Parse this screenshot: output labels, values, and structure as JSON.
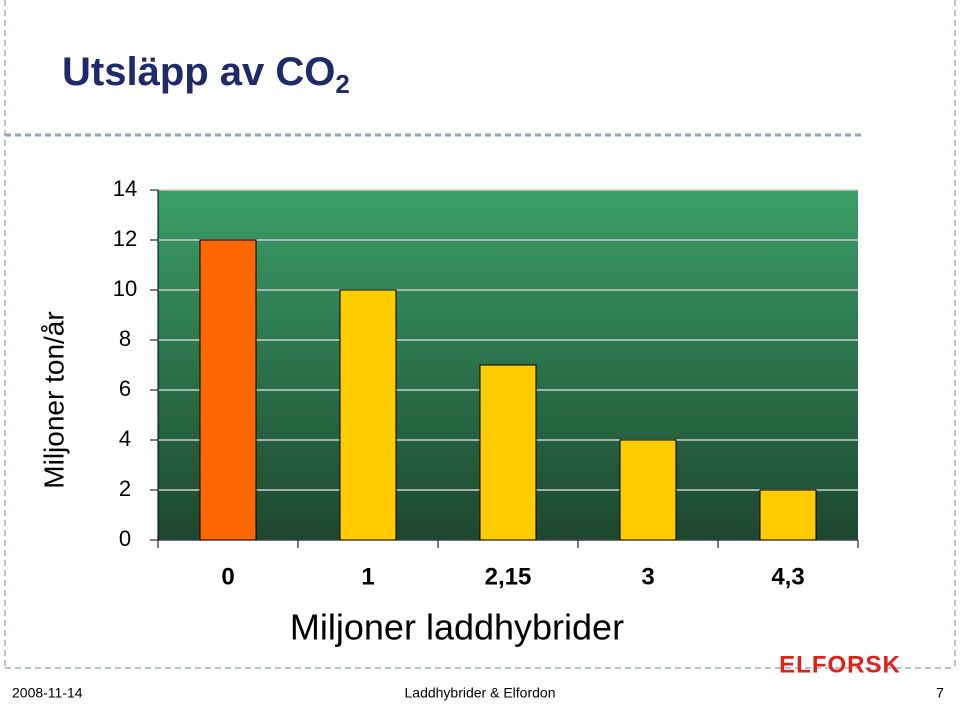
{
  "chart_data": {
    "type": "bar",
    "title": "Utsläpp av CO",
    "title_subscript": "2",
    "y_label": "Miljoner ton/år",
    "x_label": "Miljoner laddhybrider",
    "categories": [
      "0",
      "1",
      "2,15",
      "3",
      "4,3"
    ],
    "values": [
      12,
      10,
      7,
      4,
      2
    ],
    "colors": [
      "#ff6600",
      "#ffcc00",
      "#ffcc00",
      "#ffcc00",
      "#ffcc00"
    ],
    "ylim": [
      0,
      14
    ],
    "yticks": [
      0,
      2,
      4,
      6,
      8,
      10,
      12,
      14
    ],
    "grid": true
  },
  "logo": "ELFORSK",
  "footer": {
    "date": "2008-11-14",
    "center": "Laddhybrider & Elfordon",
    "page": "7"
  }
}
